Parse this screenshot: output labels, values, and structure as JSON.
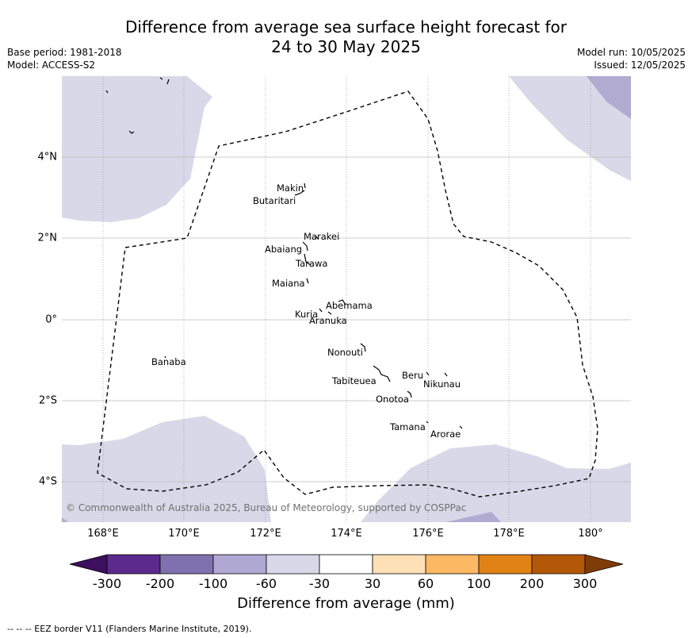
{
  "title": {
    "line1": "Difference from average sea surface height forecast for",
    "line2": "24 to 30 May 2025"
  },
  "meta_left": {
    "base_period": "Base period: 1981-2018",
    "model": "Model: ACCESS-S2"
  },
  "meta_right": {
    "model_run": "Model run: 10/05/2025",
    "issued": "Issued: 12/05/2025"
  },
  "map": {
    "x_ticks": [
      "168°E",
      "170°E",
      "172°E",
      "174°E",
      "176°E",
      "178°E",
      "180°"
    ],
    "y_ticks": [
      "4°N",
      "2°N",
      "0°",
      "2°S",
      "4°S"
    ],
    "copyright": "© Commonwealth of Australia 2025, Bureau of Meteorology, supported by COSPPac",
    "islands": [
      "Makin",
      "Butaritari",
      "Marakei",
      "Abaiang",
      "Tarawa",
      "Maiana",
      "Abemama",
      "Kuria",
      "Aranuka",
      "Nonouti",
      "Banaba",
      "Tabiteuea",
      "Beru",
      "Nikunau",
      "Onotoa",
      "Tamana",
      "Arorae"
    ],
    "anomaly_colors": {
      "light": "#d8d8e8",
      "medium": "#b1abd2"
    }
  },
  "colorbar": {
    "label": "Difference from average (mm)",
    "ticks": [
      "-300",
      "-200",
      "-100",
      "-60",
      "-30",
      "30",
      "60",
      "100",
      "200",
      "300"
    ],
    "colors": [
      "#3d0f5e",
      "#5a2a8c",
      "#7f71ae",
      "#aea8d2",
      "#d8d8e8",
      "#ffffff",
      "#fee0b6",
      "#fdb863",
      "#e08214",
      "#b35806",
      "#7f3b08"
    ]
  },
  "footnote": "--  --  -- EEZ border V11 (Flanders Marine Institute, 2019)."
}
